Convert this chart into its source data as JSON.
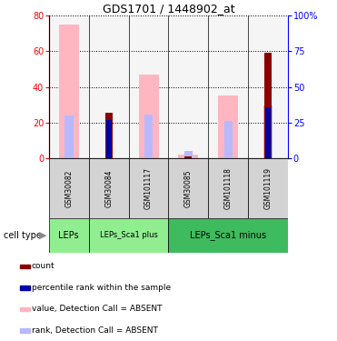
{
  "title": "GDS1701 / 1448902_at",
  "samples": [
    "GSM30082",
    "GSM30084",
    "GSM101117",
    "GSM30085",
    "GSM101118",
    "GSM101119"
  ],
  "value_absent": [
    75,
    0,
    47,
    2,
    35,
    0
  ],
  "rank_absent": [
    30,
    0,
    30.5,
    5.5,
    26,
    37
  ],
  "count": [
    0,
    25.5,
    0,
    1,
    0,
    59
  ],
  "percentile": [
    0,
    27,
    0,
    0,
    0,
    36
  ],
  "ylim_left": [
    0,
    80
  ],
  "ylim_right": [
    0,
    100
  ],
  "yticks_left": [
    0,
    20,
    40,
    60,
    80
  ],
  "yticks_right": [
    0,
    25,
    50,
    75,
    100
  ],
  "ytick_labels_right": [
    "0",
    "25",
    "50",
    "75",
    "100%"
  ],
  "color_count": "#8B0000",
  "color_percentile": "#0000AA",
  "color_value_absent": "#FFB6C1",
  "color_rank_absent": "#b8b8ff",
  "cell_type_groups": [
    {
      "label": "LEPs",
      "start": 0,
      "end": 1,
      "color": "#90ee90",
      "fontsize": 7
    },
    {
      "label": "LEPs_Sca1 plus",
      "start": 1,
      "end": 3,
      "color": "#90ee90",
      "fontsize": 6
    },
    {
      "label": "LEPs_Sca1 minus",
      "start": 3,
      "end": 6,
      "color": "#3dbb5e",
      "fontsize": 7
    }
  ],
  "legend_items": [
    {
      "color": "#8B0000",
      "label": "count"
    },
    {
      "color": "#0000AA",
      "label": "percentile rank within the sample"
    },
    {
      "color": "#FFB6C1",
      "label": "value, Detection Call = ABSENT"
    },
    {
      "color": "#b8b8ff",
      "label": "rank, Detection Call = ABSENT"
    }
  ],
  "bg_color": "#ffffff",
  "plot_bg": "#f5f5f5"
}
